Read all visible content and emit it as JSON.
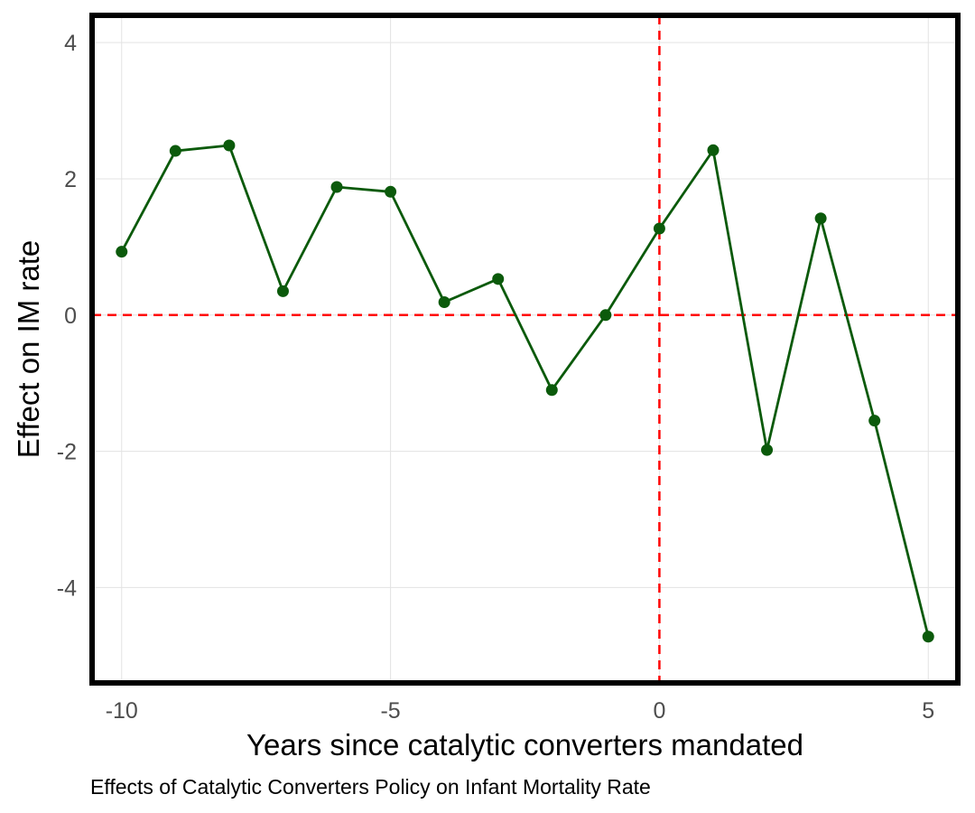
{
  "chart_data": {
    "type": "line",
    "title": "",
    "caption": "Effects of Catalytic Converters Policy on Infant Mortality Rate",
    "xlabel": "Years since catalytic converters mandated",
    "ylabel": "Effect on IM rate",
    "xlim": [
      -10.55,
      5.55
    ],
    "ylim": [
      -5.4,
      4.4
    ],
    "x_ticks": [
      -10,
      -5,
      0,
      5
    ],
    "x_tick_labels": [
      "-10",
      "-5",
      "0",
      "5"
    ],
    "y_ticks": [
      -4,
      -2,
      0,
      2,
      4
    ],
    "y_tick_labels": [
      "-4",
      "-2",
      "0",
      "2",
      "4"
    ],
    "grid": true,
    "reference_lines": [
      {
        "axis": "x",
        "value": 0,
        "color": "#ff0000",
        "style": "dashed"
      },
      {
        "axis": "y",
        "value": 0,
        "color": "#ff0000",
        "style": "dashed"
      }
    ],
    "series": [
      {
        "color": "#0b5a0b",
        "points": [
          {
            "x": -10,
            "y": 0.93
          },
          {
            "x": -9,
            "y": 2.41
          },
          {
            "x": -8,
            "y": 2.49
          },
          {
            "x": -7,
            "y": 0.35
          },
          {
            "x": -6,
            "y": 1.88
          },
          {
            "x": -5,
            "y": 1.81
          },
          {
            "x": -4,
            "y": 0.19
          },
          {
            "x": -3,
            "y": 0.53
          },
          {
            "x": -2,
            "y": -1.1
          },
          {
            "x": -1,
            "y": 0.0
          },
          {
            "x": 0,
            "y": 1.27
          },
          {
            "x": 1,
            "y": 2.42
          },
          {
            "x": 2,
            "y": -1.98
          },
          {
            "x": 3,
            "y": 1.42
          },
          {
            "x": 4,
            "y": -1.55
          },
          {
            "x": 5,
            "y": -4.72
          }
        ]
      }
    ]
  }
}
